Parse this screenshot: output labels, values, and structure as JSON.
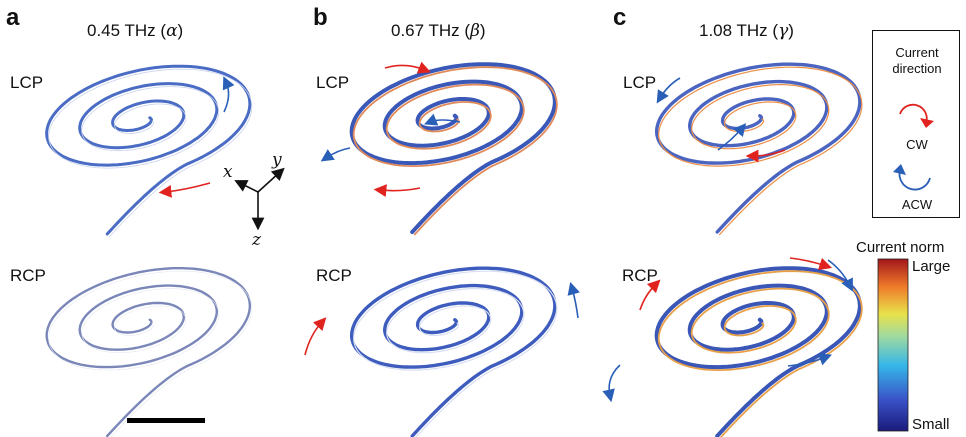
{
  "panels": [
    {
      "letter": "a",
      "freq": "0.45 THz",
      "greek": "α"
    },
    {
      "letter": "b",
      "freq": "0.67 THz",
      "greek": "β"
    },
    {
      "letter": "c",
      "freq": "1.08 THz",
      "greek": "γ"
    }
  ],
  "polarizations": {
    "top": "LCP",
    "bottom": "RCP"
  },
  "axes": {
    "x": "x",
    "y": "y",
    "z": "z"
  },
  "legend": {
    "title_line1": "Current",
    "title_line2": "direction",
    "cw": "CW",
    "acw": "ACW"
  },
  "colorbar": {
    "title": "Current norm",
    "max_label": "Large",
    "min_label": "Small"
  },
  "colors": {
    "cw": "#e0231f",
    "acw": "#2a5fb8"
  }
}
